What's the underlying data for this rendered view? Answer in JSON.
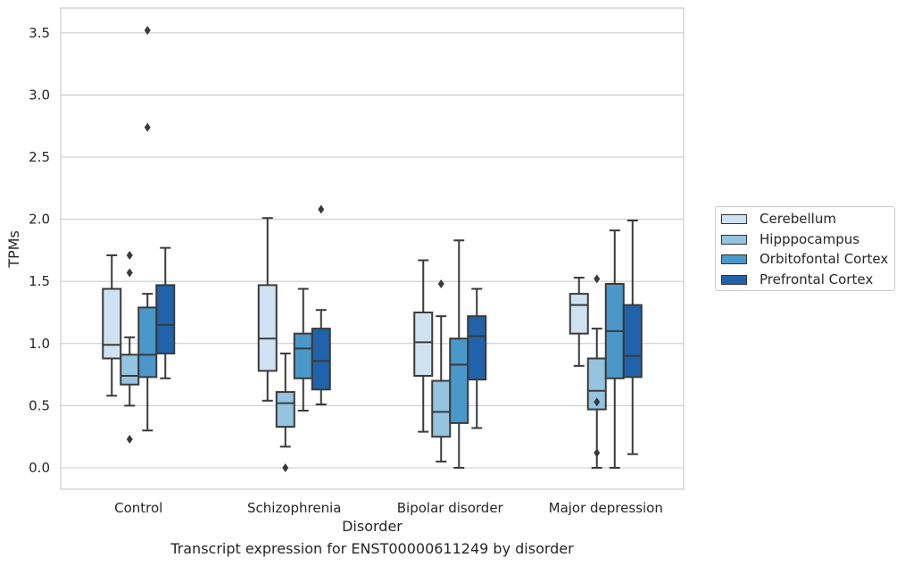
{
  "chart_data": {
    "type": "boxplot",
    "title": "",
    "caption": "Transcript expression for ENST00000611249 by disorder",
    "xlabel": "Disorder",
    "ylabel": "TPMs",
    "ylim": [
      -0.17,
      3.7
    ],
    "yticks": [
      "0.0",
      "0.5",
      "1.0",
      "1.5",
      "2.0",
      "2.5",
      "3.0",
      "3.5"
    ],
    "grid": true,
    "legend_position": "center-right",
    "categories": [
      "Control",
      "Schizophrenia",
      "Bipolar disorder",
      "Major depression"
    ],
    "series": [
      {
        "name": "Cerebellum",
        "color": "#d0e1f2",
        "boxes": [
          {
            "whislo": 0.58,
            "q1": 0.88,
            "med": 0.99,
            "q3": 1.44,
            "whishi": 1.71,
            "fliers": []
          },
          {
            "whislo": 0.54,
            "q1": 0.78,
            "med": 1.04,
            "q3": 1.47,
            "whishi": 2.01,
            "fliers": []
          },
          {
            "whislo": 0.29,
            "q1": 0.74,
            "med": 1.01,
            "q3": 1.25,
            "whishi": 1.67,
            "fliers": []
          },
          {
            "whislo": 0.82,
            "q1": 1.08,
            "med": 1.31,
            "q3": 1.4,
            "whishi": 1.53,
            "fliers": []
          }
        ]
      },
      {
        "name": "Hipppocampus",
        "color": "#94c4df",
        "boxes": [
          {
            "whislo": 0.5,
            "q1": 0.67,
            "med": 0.74,
            "q3": 0.91,
            "whishi": 1.05,
            "fliers": [
              1.71,
              1.57,
              0.23
            ]
          },
          {
            "whislo": 0.17,
            "q1": 0.33,
            "med": 0.52,
            "q3": 0.61,
            "whishi": 0.92,
            "fliers": [
              0.0
            ]
          },
          {
            "whislo": 0.05,
            "q1": 0.25,
            "med": 0.45,
            "q3": 0.7,
            "whishi": 1.22,
            "fliers": [
              1.48
            ]
          },
          {
            "whislo": 0.0,
            "q1": 0.47,
            "med": 0.62,
            "q3": 0.88,
            "whishi": 1.12,
            "fliers": [
              1.52,
              0.53,
              0.12
            ]
          }
        ]
      },
      {
        "name": "Orbitofontal Cortex",
        "color": "#4a98c9",
        "boxes": [
          {
            "whislo": 0.3,
            "q1": 0.73,
            "med": 0.91,
            "q3": 1.29,
            "whishi": 1.4,
            "fliers": [
              3.52,
              2.74
            ]
          },
          {
            "whislo": 0.46,
            "q1": 0.72,
            "med": 0.96,
            "q3": 1.08,
            "whishi": 1.44,
            "fliers": []
          },
          {
            "whislo": 0.0,
            "q1": 0.36,
            "med": 0.83,
            "q3": 1.04,
            "whishi": 1.83,
            "fliers": []
          },
          {
            "whislo": 0.0,
            "q1": 0.72,
            "med": 1.1,
            "q3": 1.48,
            "whishi": 1.91,
            "fliers": []
          }
        ]
      },
      {
        "name": "Prefrontal Cortex",
        "color": "#2163aa",
        "boxes": [
          {
            "whislo": 0.72,
            "q1": 0.92,
            "med": 1.15,
            "q3": 1.47,
            "whishi": 1.77,
            "fliers": []
          },
          {
            "whislo": 0.51,
            "q1": 0.63,
            "med": 0.86,
            "q3": 1.12,
            "whishi": 1.27,
            "fliers": [
              2.08
            ]
          },
          {
            "whislo": 0.32,
            "q1": 0.71,
            "med": 1.06,
            "q3": 1.22,
            "whishi": 1.44,
            "fliers": []
          },
          {
            "whislo": 0.11,
            "q1": 0.73,
            "med": 0.9,
            "q3": 1.31,
            "whishi": 1.99,
            "fliers": []
          }
        ]
      }
    ]
  }
}
